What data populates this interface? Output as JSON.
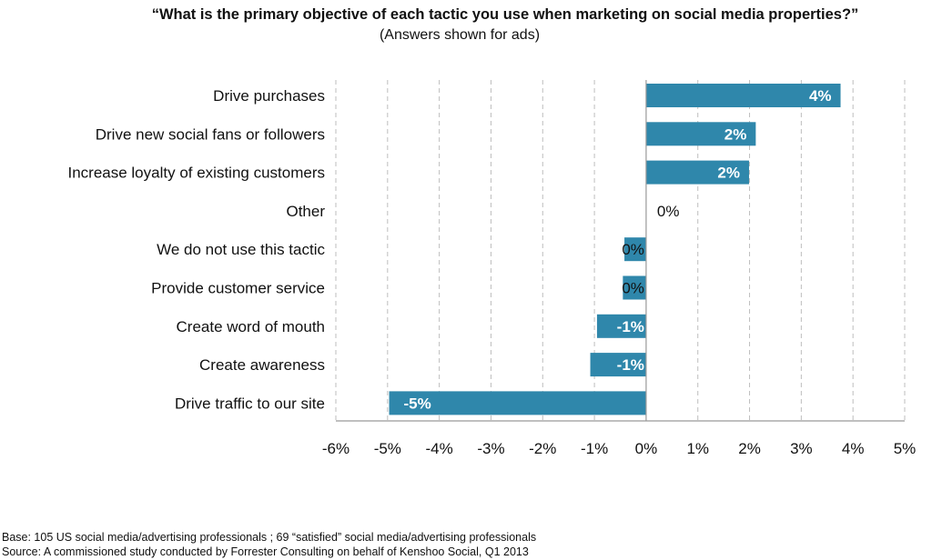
{
  "chart_data": {
    "type": "bar",
    "orientation": "horizontal",
    "title": "“What is the primary objective of each tactic you use when marketing on social media properties?”",
    "subtitle": "(Answers shown for ads)",
    "categories": [
      "Drive purchases",
      "Drive new social fans or followers",
      "Increase loyalty of existing customers",
      "Other",
      "We do not use this tactic",
      "Provide customer service",
      "Create word of mouth",
      "Create awareness",
      "Drive traffic to our site"
    ],
    "values": [
      3.76,
      2.12,
      1.99,
      0,
      -0.42,
      -0.45,
      -0.95,
      -1.08,
      -4.97
    ],
    "data_labels": [
      "4%",
      "2%",
      "2%",
      "0%",
      "0%",
      "0%",
      "-1%",
      "-1%",
      "-5%"
    ],
    "xlim": [
      -6,
      5
    ],
    "x_ticks": [
      "-6%",
      "-5%",
      "-4%",
      "-3%",
      "-2%",
      "-1%",
      "0%",
      "1%",
      "2%",
      "3%",
      "4%",
      "5%"
    ],
    "grid": "vertical dashed",
    "bar_color": "#2f87ab",
    "xlabel": "",
    "ylabel": ""
  },
  "footnotes": {
    "base": "Base: 105 US social media/advertising professionals ; 69 “satisfied” social media/advertising professionals",
    "source": "Source: A commissioned study conducted by Forrester Consulting on behalf of Kenshoo Social, Q1 2013"
  }
}
